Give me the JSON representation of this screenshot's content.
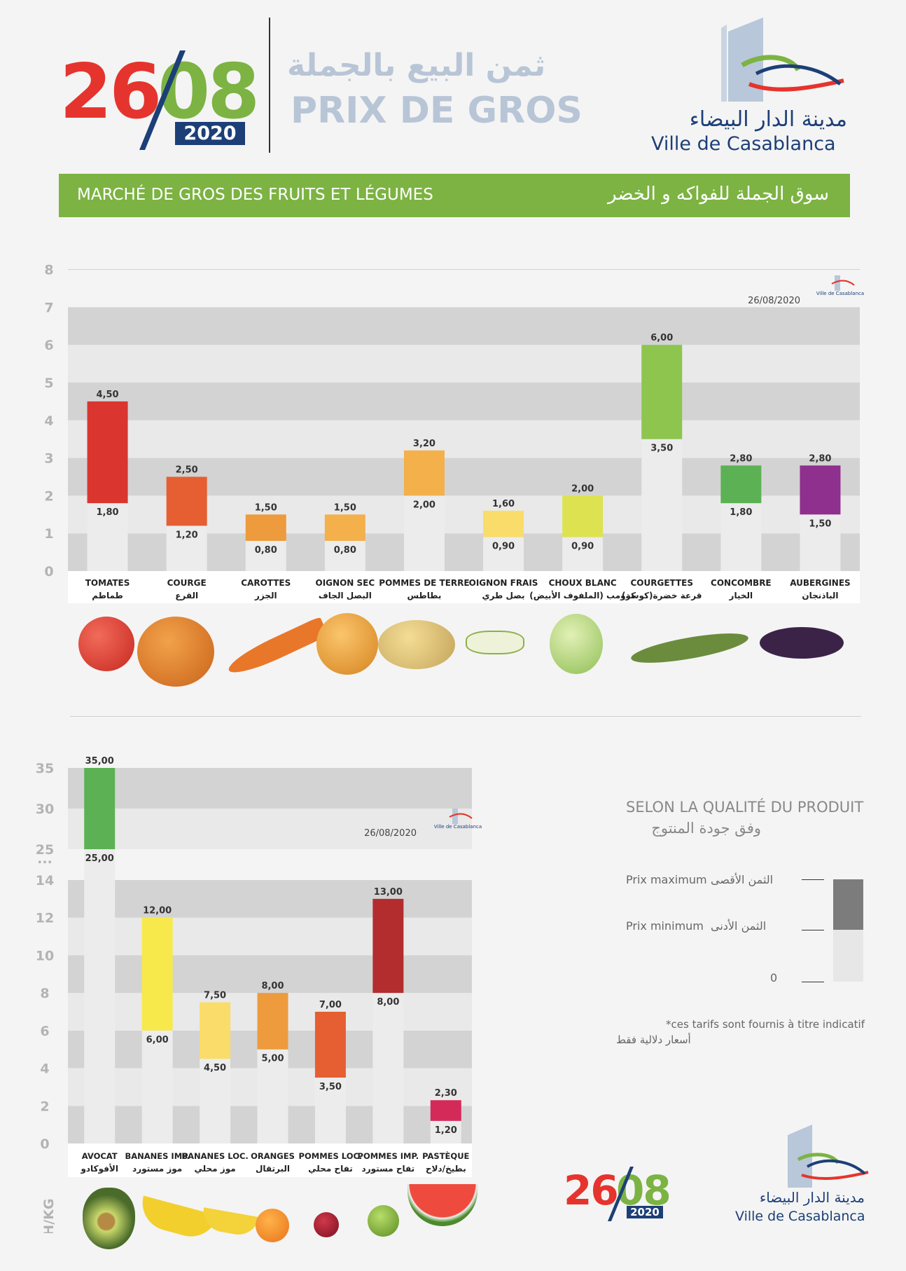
{
  "header": {
    "day": "26",
    "month": "08",
    "year": "2020",
    "title_ar": "ثمن البيع بالجملة",
    "title_fr": "PRIX DE GROS",
    "city_ar": "مدينة الدار البيضاء",
    "city_fr": "Ville de Casablanca"
  },
  "banner": {
    "fr": "MARCHÉ DE GROS DES FRUITS ET LÉGUMES",
    "ar": "سوق الجملة للفواكه و الخضر"
  },
  "colors": {
    "red": "#e5342d",
    "green": "#7cb342",
    "blue": "#1c3f77",
    "banner": "#7cb342",
    "band_dark": "#d3d3d3",
    "band_light": "#e9e9e9"
  },
  "unit_label": "DH/KG",
  "chart_data": [
    {
      "type": "bar",
      "stacked_range": true,
      "date_label": "26/08/2020",
      "ylim": [
        0,
        8
      ],
      "yticks": [
        "0",
        "1",
        "2",
        "3",
        "4",
        "5",
        "6",
        "7",
        "8"
      ],
      "categories": [
        "TOMATES",
        "COURGE",
        "CAROTTES",
        "OIGNON SEC",
        "POMMES DE TERRE",
        "OIGNON FRAIS",
        "CHOUX BLANC",
        "COURGETTES",
        "CONCOMBRE",
        "AUBERGINES"
      ],
      "categories_ar": [
        "طماطم",
        "القرع",
        "الجزر",
        "البصل الجاف",
        "بطاطس",
        "بصل طري",
        "كرومب (الملفوف الأبيض)",
        "قرعة خضرة(كوسة)",
        "الخيار",
        "الباذنجان"
      ],
      "min": [
        1.8,
        1.2,
        0.8,
        0.8,
        2.0,
        0.9,
        0.9,
        3.5,
        1.8,
        1.5
      ],
      "max": [
        4.5,
        2.5,
        1.5,
        1.5,
        3.2,
        1.6,
        2.0,
        6.0,
        2.8,
        2.8
      ],
      "min_labels": [
        "1,80",
        "1,20",
        "0,80",
        "0,80",
        "2,00",
        "0,90",
        "0,90",
        "3,50",
        "1,80",
        "1,50"
      ],
      "max_labels": [
        "4,50",
        "2,50",
        "1,50",
        "1,50",
        "3,20",
        "1,60",
        "2,00",
        "6,00",
        "2,80",
        "2,80"
      ],
      "bar_colors": [
        "#db3530",
        "#e55f32",
        "#ee9b3d",
        "#f3b04b",
        "#f3b04b",
        "#f9dc6a",
        "#dde251",
        "#8dc54e",
        "#5cb155",
        "#8f2f8e"
      ]
    },
    {
      "type": "bar",
      "stacked_range": true,
      "broken_axis": true,
      "date_label": "26/08/2020",
      "yticks": [
        "0",
        "2",
        "4",
        "6",
        "8",
        "10",
        "12",
        "14",
        "...",
        "25",
        "30",
        "35"
      ],
      "categories": [
        "AVOCAT",
        "BANANES IMP.",
        "BANANES LOC.",
        "ORANGES",
        "POMMES LOC.",
        "POMMES IMP.",
        "PASTÈQUE"
      ],
      "categories_ar": [
        "الأفوكادو",
        "موز مستورد",
        "موز محلي",
        "البرتقال",
        "تفاح محلي",
        "تفاح مستورد",
        "بطيخ/دلاح"
      ],
      "min": [
        25.0,
        6.0,
        4.5,
        5.0,
        3.5,
        8.0,
        1.2
      ],
      "max": [
        35.0,
        12.0,
        7.5,
        8.0,
        7.0,
        13.0,
        2.3
      ],
      "min_labels": [
        "25,00",
        "6,00",
        "4,50",
        "5,00",
        "3,50",
        "8,00",
        "1,20"
      ],
      "max_labels": [
        "35,00",
        "12,00",
        "7,50",
        "8,00",
        "7,00",
        "13,00",
        "2,30"
      ],
      "bar_colors": [
        "#5cb155",
        "#f7e94c",
        "#f9dc6a",
        "#ee9b3d",
        "#e55f32",
        "#b32d2e",
        "#d32a5a"
      ]
    }
  ],
  "legend": {
    "title_fr": "SELON LA QUALITÉ DU PRODUIT",
    "title_ar": "وفق جودة المنتوج",
    "max_fr": "Prix maximum",
    "max_ar": "الثمن الأقصى",
    "min_fr": "Prix minimum",
    "min_ar": "الثمن الأدنى",
    "zero": "0"
  },
  "note": {
    "fr": "*ces tarifs sont fournis à titre indicatif",
    "ar": "أسعار دلالية فقط"
  }
}
